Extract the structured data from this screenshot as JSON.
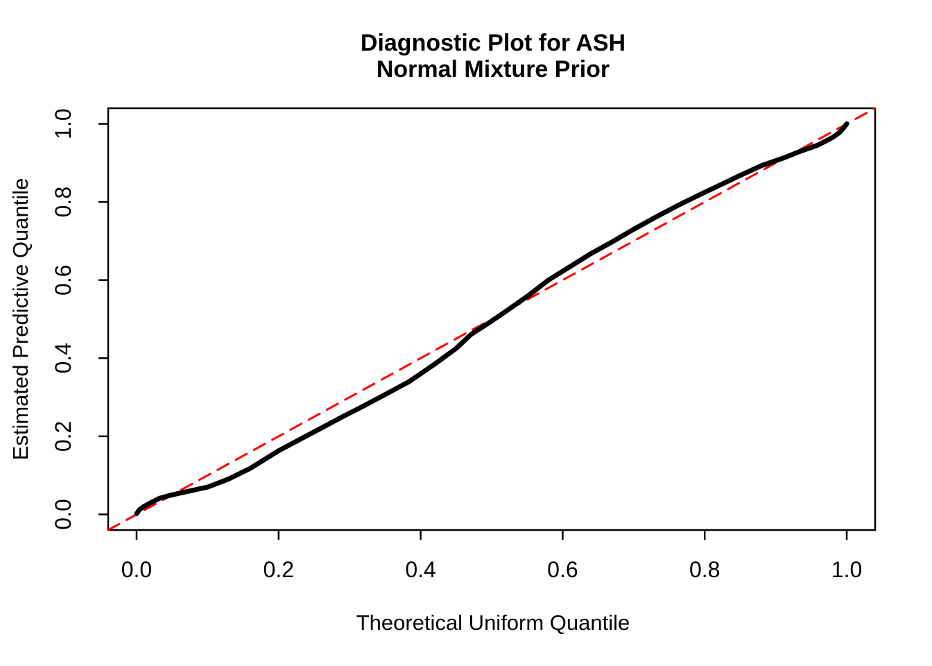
{
  "title": {
    "line1": "Diagnostic Plot for ASH",
    "line2": "Normal Mixture Prior"
  },
  "axes": {
    "x": {
      "label": "Theoretical Uniform Quantile",
      "tick_labels": [
        "0.0",
        "0.2",
        "0.4",
        "0.6",
        "0.8",
        "1.0"
      ],
      "tick_values": [
        0.0,
        0.2,
        0.4,
        0.6,
        0.8,
        1.0
      ]
    },
    "y": {
      "label": "Estimated Predictive Quantile",
      "tick_labels": [
        "0.0",
        "0.2",
        "0.4",
        "0.6",
        "0.8",
        "1.0"
      ],
      "tick_values": [
        0.0,
        0.2,
        0.4,
        0.6,
        0.8,
        1.0
      ]
    }
  },
  "colors": {
    "curve": "#000000",
    "reference_line": "#FF0000",
    "background": "#FFFFFF",
    "text": "#000000",
    "frame": "#000000"
  },
  "chart_data": {
    "type": "line",
    "title": "Diagnostic Plot for ASH — Normal Mixture Prior",
    "xlabel": "Theoretical Uniform Quantile",
    "ylabel": "Estimated Predictive Quantile",
    "xlim": [
      -0.04,
      1.04
    ],
    "ylim": [
      -0.04,
      1.04
    ],
    "grid": false,
    "legend": "none",
    "series": [
      {
        "name": "estimated-predictive-quantiles",
        "color": "#000000",
        "style": "solid",
        "stroke_width": 7,
        "x": [
          0.0,
          0.004,
          0.01,
          0.02,
          0.032,
          0.05,
          0.07,
          0.1,
          0.13,
          0.16,
          0.2,
          0.23,
          0.26,
          0.29,
          0.32,
          0.35,
          0.383,
          0.42,
          0.45,
          0.471,
          0.5,
          0.52,
          0.55,
          0.58,
          0.61,
          0.64,
          0.67,
          0.7,
          0.73,
          0.76,
          0.79,
          0.82,
          0.85,
          0.88,
          0.91,
          0.935,
          0.96,
          0.98,
          0.99,
          0.995,
          1.0
        ],
        "y": [
          0.002,
          0.012,
          0.02,
          0.03,
          0.041,
          0.05,
          0.058,
          0.07,
          0.091,
          0.118,
          0.163,
          0.192,
          0.221,
          0.25,
          0.278,
          0.307,
          0.339,
          0.385,
          0.425,
          0.461,
          0.495,
          0.52,
          0.558,
          0.6,
          0.634,
          0.668,
          0.698,
          0.73,
          0.76,
          0.789,
          0.816,
          0.842,
          0.868,
          0.893,
          0.912,
          0.93,
          0.946,
          0.965,
          0.978,
          0.988,
          1.0
        ]
      },
      {
        "name": "reference-diagonal",
        "color": "#FF0000",
        "style": "dashed",
        "stroke_width": 3,
        "x": [
          -0.04,
          1.04
        ],
        "y": [
          -0.04,
          1.04
        ]
      }
    ]
  }
}
